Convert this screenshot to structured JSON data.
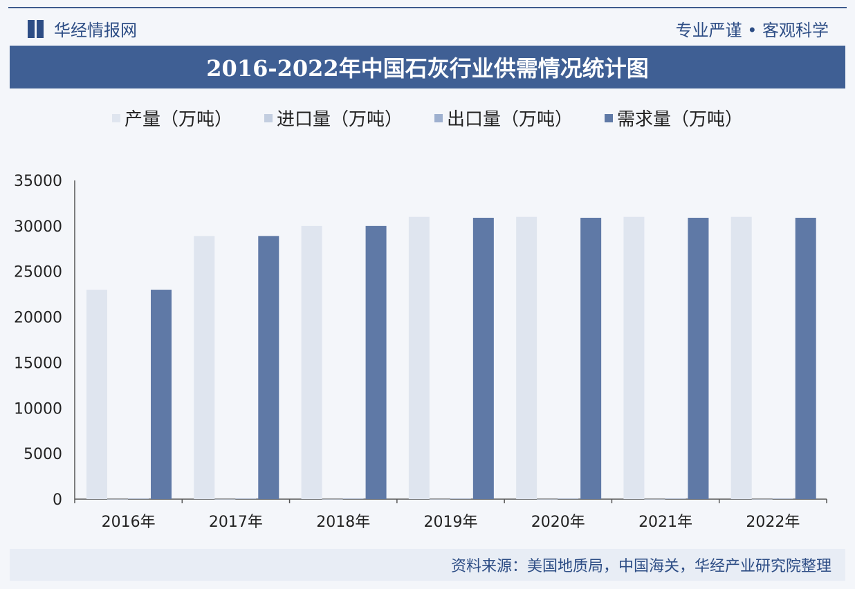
{
  "header": {
    "brand": "华经情报网",
    "slogan": "专业严谨 • 客观科学"
  },
  "footer": {
    "source": "资料来源：美国地质局，中国海关，华经产业研究院整理"
  },
  "colors": {
    "production": "#dfe5ef",
    "import": "#c3cee0",
    "export": "#9eb0cf",
    "demand": "#5f79a6",
    "title_bar": "#3f5f94"
  },
  "chart_data": {
    "type": "bar",
    "title": "2016-2022年中国石灰行业供需情况统计图",
    "categories": [
      "2016年",
      "2017年",
      "2018年",
      "2019年",
      "2020年",
      "2021年",
      "2022年"
    ],
    "series": [
      {
        "name": "产量（万吨）",
        "values": [
          23000,
          28900,
          30000,
          31000,
          31000,
          31000,
          31000
        ]
      },
      {
        "name": "进口量（万吨）",
        "values": [
          5,
          5,
          5,
          5,
          5,
          5,
          5
        ]
      },
      {
        "name": "出口量（万吨）",
        "values": [
          50,
          50,
          50,
          50,
          50,
          50,
          50
        ]
      },
      {
        "name": "需求量（万吨）",
        "values": [
          23000,
          28900,
          30000,
          30900,
          30900,
          30900,
          30900
        ]
      }
    ],
    "yticks": [
      0,
      5000,
      10000,
      15000,
      20000,
      25000,
      30000,
      35000
    ],
    "ylim": [
      0,
      35000
    ],
    "grid": false,
    "legend": "top"
  }
}
